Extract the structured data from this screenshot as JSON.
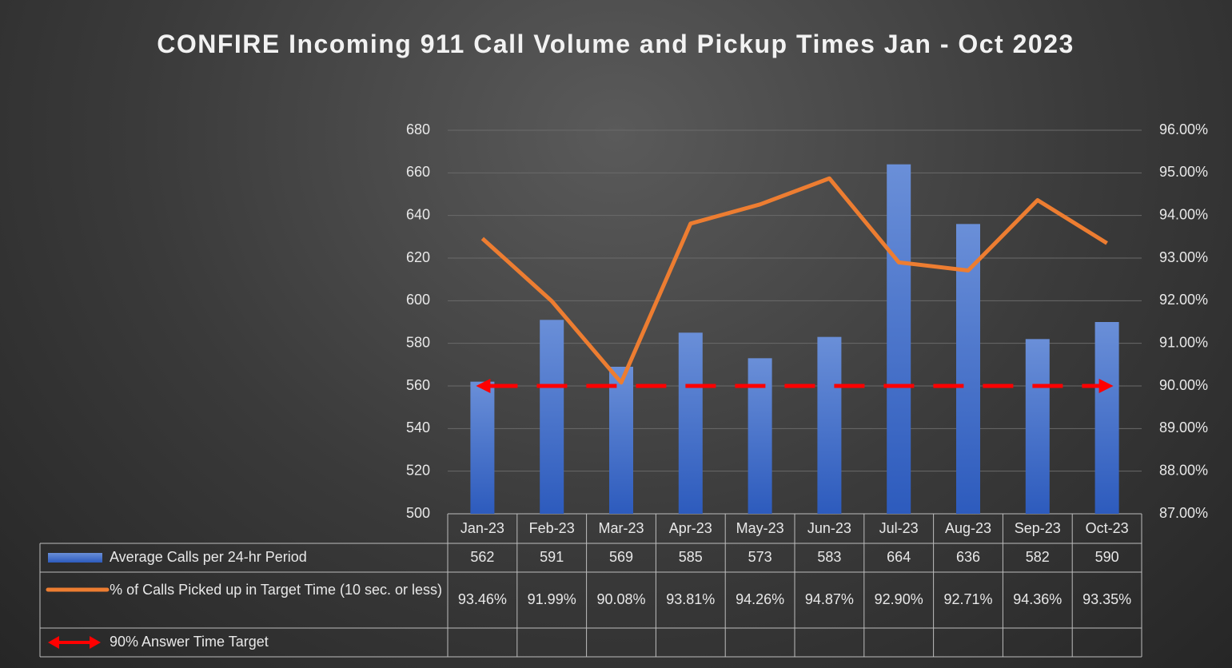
{
  "chart_data": {
    "type": "bar-line-table",
    "title": "CONFIRE Incoming 911 Call Volume and Pickup Times Jan - Oct 2023",
    "categories": [
      "Jan-23",
      "Feb-23",
      "Mar-23",
      "Apr-23",
      "May-23",
      "Jun-23",
      "Jul-23",
      "Aug-23",
      "Sep-23",
      "Oct-23"
    ],
    "series": [
      {
        "name": "Average Calls per 24-hr Period",
        "type": "bar",
        "color": "#4472c4",
        "values": [
          562,
          591,
          569,
          585,
          573,
          583,
          664,
          636,
          582,
          590
        ]
      },
      {
        "name": "% of Calls Picked up in Target Time (10 sec. or less)",
        "type": "line",
        "axis": "y2",
        "color": "#ed7d31",
        "values": [
          93.46,
          91.99,
          90.08,
          93.81,
          94.26,
          94.87,
          92.9,
          92.71,
          94.36,
          93.35
        ],
        "value_labels": [
          "93.46%",
          "91.99%",
          "90.08%",
          "93.81%",
          "94.26%",
          "94.87%",
          "92.90%",
          "92.71%",
          "94.36%",
          "93.35%"
        ]
      },
      {
        "name": "90% Answer Time Target",
        "type": "dashed-arrow",
        "axis": "y2",
        "color": "#ff0000",
        "values": [
          90,
          90,
          90,
          90,
          90,
          90,
          90,
          90,
          90,
          90
        ]
      }
    ],
    "ylim": [
      500,
      680
    ],
    "yticks": [
      500,
      520,
      540,
      560,
      580,
      600,
      620,
      640,
      660,
      680
    ],
    "y2lim": [
      87,
      96
    ],
    "y2ticks": [
      {
        "value": 87,
        "label": "87.00%"
      },
      {
        "value": 88,
        "label": "88.00%"
      },
      {
        "value": 89,
        "label": "89.00%"
      },
      {
        "value": 90,
        "label": "90.00%"
      },
      {
        "value": 91,
        "label": "91.00%"
      },
      {
        "value": 92,
        "label": "92.00%"
      },
      {
        "value": 93,
        "label": "93.00%"
      },
      {
        "value": 94,
        "label": "94.00%"
      },
      {
        "value": 95,
        "label": "95.00%"
      },
      {
        "value": 96,
        "label": "96.00%"
      }
    ],
    "grid": true
  }
}
